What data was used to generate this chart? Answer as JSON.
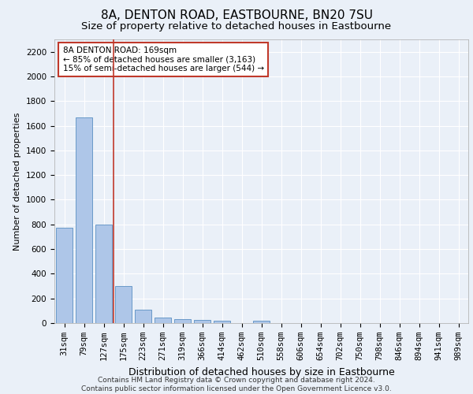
{
  "title1": "8A, DENTON ROAD, EASTBOURNE, BN20 7SU",
  "title2": "Size of property relative to detached houses in Eastbourne",
  "xlabel": "Distribution of detached houses by size in Eastbourne",
  "ylabel": "Number of detached properties",
  "categories": [
    "31sqm",
    "79sqm",
    "127sqm",
    "175sqm",
    "223sqm",
    "271sqm",
    "319sqm",
    "366sqm",
    "414sqm",
    "462sqm",
    "510sqm",
    "558sqm",
    "606sqm",
    "654sqm",
    "702sqm",
    "750sqm",
    "798sqm",
    "846sqm",
    "894sqm",
    "941sqm",
    "989sqm"
  ],
  "values": [
    770,
    1670,
    800,
    300,
    110,
    45,
    30,
    25,
    20,
    0,
    20,
    0,
    0,
    0,
    0,
    0,
    0,
    0,
    0,
    0,
    0
  ],
  "bar_color": "#aec6e8",
  "bar_edge_color": "#5a8fc2",
  "vline_x": 2.5,
  "vline_color": "#c0392b",
  "annotation_text": "8A DENTON ROAD: 169sqm\n← 85% of detached houses are smaller (3,163)\n15% of semi-detached houses are larger (544) →",
  "annotation_box_color": "#ffffff",
  "annotation_box_edge_color": "#c0392b",
  "ylim": [
    0,
    2300
  ],
  "yticks": [
    0,
    200,
    400,
    600,
    800,
    1000,
    1200,
    1400,
    1600,
    1800,
    2000,
    2200
  ],
  "bg_color": "#eaf0f8",
  "plot_bg_color": "#eaf0f8",
  "grid_color": "#ffffff",
  "footer": "Contains HM Land Registry data © Crown copyright and database right 2024.\nContains public sector information licensed under the Open Government Licence v3.0.",
  "title1_fontsize": 11,
  "title2_fontsize": 9.5,
  "ylabel_fontsize": 8,
  "xlabel_fontsize": 9,
  "tick_fontsize": 7.5,
  "footer_fontsize": 6.5,
  "annotation_fontsize": 7.5
}
